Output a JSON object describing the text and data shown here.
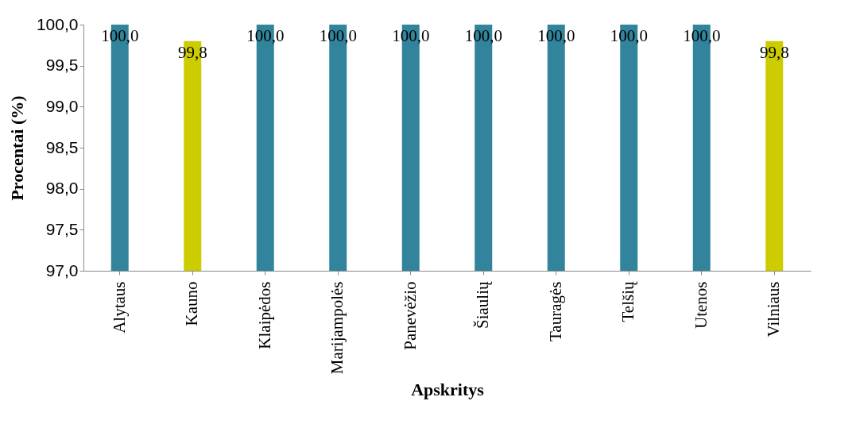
{
  "chart_data": {
    "type": "bar",
    "xlabel": "Apskritys",
    "ylabel": "Procentai (%)",
    "categories": [
      "Alytaus",
      "Kauno",
      "Klaipėdos",
      "Marijampolės",
      "Panevėžio",
      "Šiaulių",
      "Tauragės",
      "Telšių",
      "Utenos",
      "Vilniaus"
    ],
    "values": [
      100.0,
      99.8,
      100.0,
      100.0,
      100.0,
      100.0,
      100.0,
      100.0,
      100.0,
      99.8
    ],
    "colors": [
      "#31849b",
      "#cccc00",
      "#31849b",
      "#31849b",
      "#31849b",
      "#31849b",
      "#31849b",
      "#31849b",
      "#31849b",
      "#cccc00"
    ],
    "value_labels": [
      "100,0",
      "99,8",
      "100,0",
      "100,0",
      "100,0",
      "100,0",
      "100,0",
      "100,0",
      "100,0",
      "99,8"
    ],
    "ylim": [
      97,
      100
    ],
    "yticks": [
      {
        "value": 97,
        "label": "97,0"
      },
      {
        "value": 97.5,
        "label": "97,5"
      },
      {
        "value": 98,
        "label": "98,0"
      },
      {
        "value": 98.5,
        "label": "98,5"
      },
      {
        "value": 99,
        "label": "99,0"
      },
      {
        "value": 99.5,
        "label": "99,5"
      },
      {
        "value": 100,
        "label": "100,0"
      }
    ],
    "grid": false,
    "legend": false
  }
}
